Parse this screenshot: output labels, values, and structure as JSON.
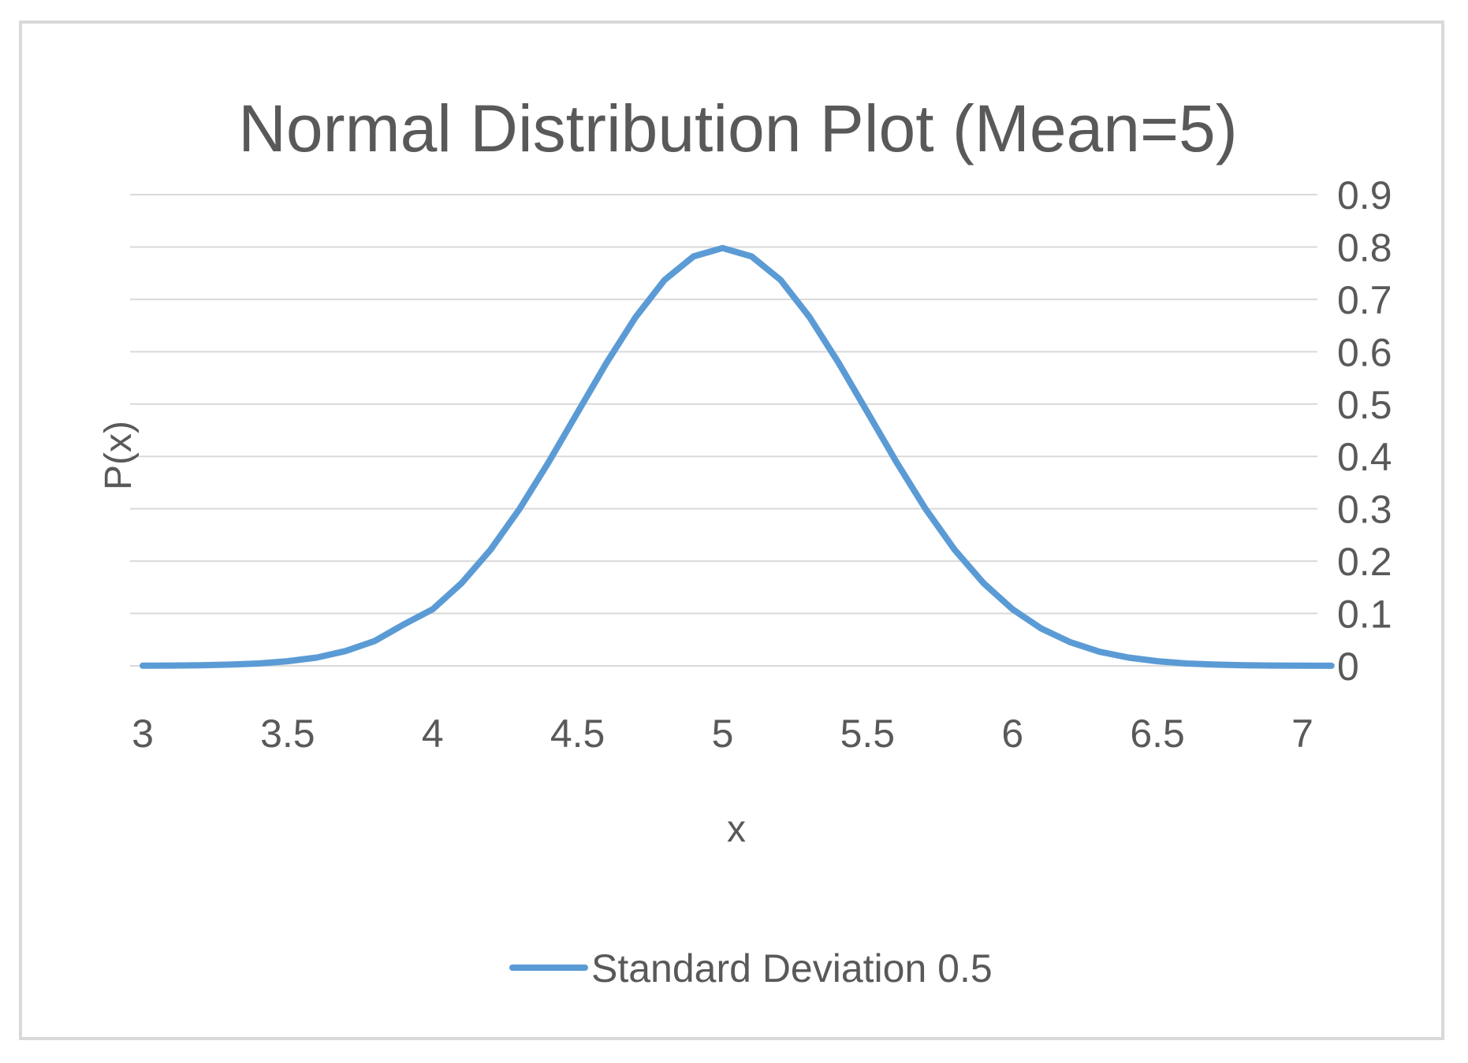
{
  "chart_data": {
    "type": "line",
    "title": "Normal Distribution Plot (Mean=5)",
    "xlabel": "x",
    "ylabel": "P(x)",
    "xlim": [
      3,
      7
    ],
    "ylim": [
      0,
      0.9
    ],
    "x_ticks": [
      "3",
      "3.5",
      "4",
      "4.5",
      "5",
      "5.5",
      "6",
      "6.5",
      "7"
    ],
    "y_ticks": [
      "0",
      "0.1",
      "0.2",
      "0.3",
      "0.4",
      "0.5",
      "0.6",
      "0.7",
      "0.8",
      "0.9"
    ],
    "y_axis_position": "right",
    "grid": true,
    "legend_position": "bottom",
    "series": [
      {
        "name": "Standard Deviation 0.5",
        "color": "#5b9bd5",
        "x": [
          3.0,
          3.1,
          3.2,
          3.3,
          3.4,
          3.5,
          3.6,
          3.7,
          3.8,
          3.9,
          4.0,
          4.1,
          4.2,
          4.3,
          4.4,
          4.5,
          4.6,
          4.7,
          4.8,
          4.9,
          5.0,
          5.1,
          5.2,
          5.3,
          5.4,
          5.5,
          5.6,
          5.7,
          5.8,
          5.9,
          6.0,
          6.1,
          6.2,
          6.3,
          6.4,
          6.5,
          6.6,
          6.7,
          6.8,
          6.9,
          7.0,
          7.1
        ],
        "values": [
          0.0003,
          0.0006,
          0.0012,
          0.0024,
          0.0045,
          0.0089,
          0.0158,
          0.0283,
          0.0474,
          0.079,
          0.108,
          0.158,
          0.222,
          0.3,
          0.389,
          0.484,
          0.579,
          0.666,
          0.737,
          0.782,
          0.798,
          0.782,
          0.737,
          0.666,
          0.579,
          0.484,
          0.389,
          0.3,
          0.222,
          0.158,
          0.108,
          0.071,
          0.045,
          0.027,
          0.0158,
          0.0089,
          0.0045,
          0.0024,
          0.0012,
          0.0006,
          0.0003,
          0.0001
        ]
      }
    ]
  }
}
